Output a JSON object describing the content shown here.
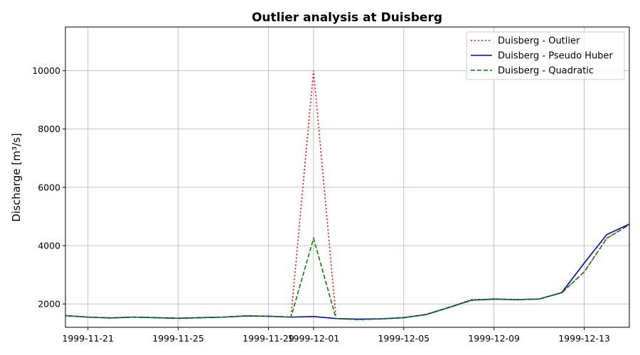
{
  "chart_data": {
    "type": "line",
    "title": "Outlier analysis at Duisberg",
    "xlabel": "",
    "ylabel": "Discharge [m³/s]",
    "xlim": [
      "1999-11-20",
      "1999-12-15"
    ],
    "ylim": [
      1200,
      11500
    ],
    "grid": true,
    "legend_position": "top-right",
    "x": [
      "1999-11-20",
      "1999-11-21",
      "1999-11-22",
      "1999-11-23",
      "1999-11-24",
      "1999-11-25",
      "1999-11-26",
      "1999-11-27",
      "1999-11-28",
      "1999-11-29",
      "1999-11-30",
      "1999-12-01",
      "1999-12-02",
      "1999-12-03",
      "1999-12-04",
      "1999-12-05",
      "1999-12-06",
      "1999-12-07",
      "1999-12-08",
      "1999-12-09",
      "1999-12-10",
      "1999-12-11",
      "1999-12-12",
      "1999-12-13",
      "1999-12-14",
      "1999-12-15"
    ],
    "xticks": [
      "1999-11-21",
      "1999-11-25",
      "1999-11-29",
      "1999-12-01",
      "1999-12-05",
      "1999-12-09",
      "1999-12-13"
    ],
    "yticks": [
      2000,
      4000,
      6000,
      8000,
      10000
    ],
    "series": [
      {
        "name": "Duisberg - Outlier",
        "color": "#ff0000",
        "dash": "2,3",
        "values": [
          1600,
          1550,
          1520,
          1550,
          1530,
          1510,
          1530,
          1550,
          1590,
          1580,
          1550,
          10000,
          1500,
          1480,
          1490,
          1530,
          1640,
          1880,
          2150,
          2160,
          2150,
          2170,
          2390,
          3100,
          4250,
          4720
        ]
      },
      {
        "name": "Duisberg - Pseudo Huber",
        "color": "#0000cc",
        "dash": "",
        "values": [
          1600,
          1550,
          1520,
          1550,
          1530,
          1510,
          1530,
          1550,
          1590,
          1580,
          1550,
          1570,
          1500,
          1480,
          1490,
          1530,
          1640,
          1880,
          2130,
          2170,
          2150,
          2170,
          2390,
          3400,
          4380,
          4740
        ]
      },
      {
        "name": "Duisberg - Quadratic",
        "color": "#008000",
        "dash": "6,3",
        "values": [
          1600,
          1550,
          1520,
          1550,
          1530,
          1510,
          1530,
          1550,
          1590,
          1580,
          1550,
          4250,
          1500,
          1460,
          1490,
          1530,
          1640,
          1880,
          2130,
          2160,
          2150,
          2170,
          2380,
          3100,
          4250,
          4720
        ]
      }
    ]
  }
}
